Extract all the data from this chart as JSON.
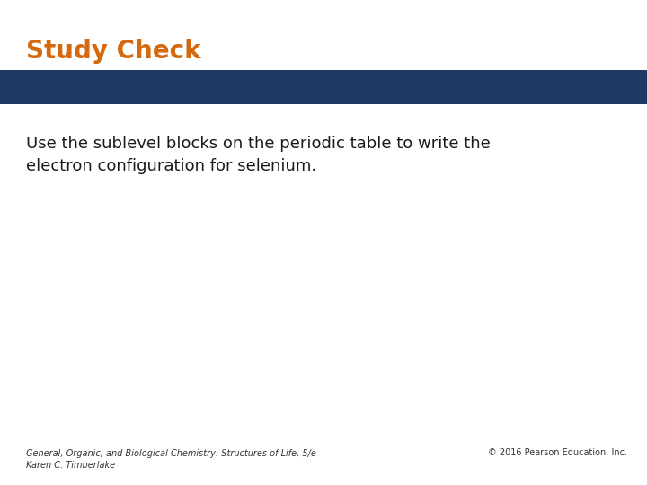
{
  "title": "Study Check",
  "title_color": "#d46910",
  "title_fontsize": 20,
  "title_bold": true,
  "banner_color": "#1f3864",
  "body_text": "Use the sublevel blocks on the periodic table to write the\nelectron configuration for selenium.",
  "body_fontsize": 13,
  "body_text_color": "#1a1a1a",
  "footer_left": "General, Organic, and Biological Chemistry: Structures of Life, 5/e\nKaren C. Timberlake",
  "footer_right": "© 2016 Pearson Education, Inc.",
  "footer_fontsize": 7,
  "footer_color": "#333333",
  "background_color": "#ffffff"
}
